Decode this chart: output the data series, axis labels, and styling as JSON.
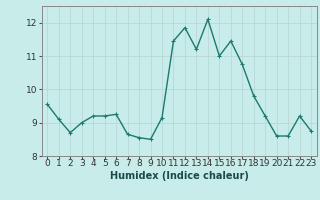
{
  "x": [
    0,
    1,
    2,
    3,
    4,
    5,
    6,
    7,
    8,
    9,
    10,
    11,
    12,
    13,
    14,
    15,
    16,
    17,
    18,
    19,
    20,
    21,
    22,
    23
  ],
  "y": [
    9.55,
    9.1,
    8.7,
    9.0,
    9.2,
    9.2,
    9.25,
    8.65,
    8.55,
    8.5,
    9.15,
    11.45,
    11.85,
    11.2,
    12.1,
    11.0,
    11.45,
    10.75,
    9.8,
    9.2,
    8.6,
    8.6,
    9.2,
    8.75
  ],
  "line_color": "#1a7a6e",
  "marker_color": "#1a7a6e",
  "bg_color": "#c8ecea",
  "grid_color_major": "#b8d8d5",
  "grid_color_minor": "#d8ecea",
  "xlabel": "Humidex (Indice chaleur)",
  "ylim": [
    8.0,
    12.5
  ],
  "xlim": [
    -0.5,
    23.5
  ],
  "yticks": [
    8,
    9,
    10,
    11,
    12
  ],
  "xticks": [
    0,
    1,
    2,
    3,
    4,
    5,
    6,
    7,
    8,
    9,
    10,
    11,
    12,
    13,
    14,
    15,
    16,
    17,
    18,
    19,
    20,
    21,
    22,
    23
  ],
  "marker_size": 2.5,
  "line_width": 1.0,
  "xlabel_fontsize": 7,
  "tick_fontsize": 6.5
}
